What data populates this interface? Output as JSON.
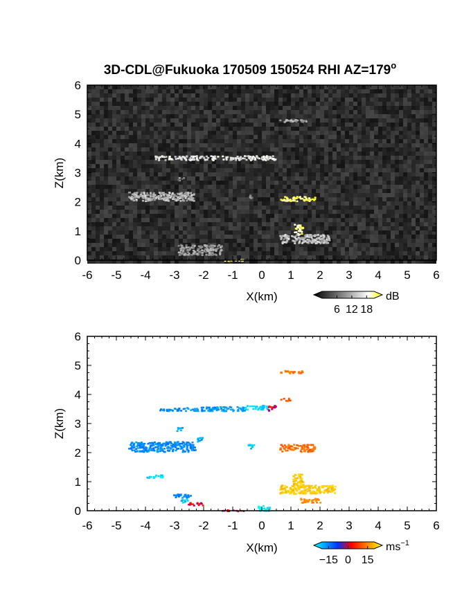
{
  "title": "3D-CDL@Fukuoka 170509 150524 RHI AZ=179",
  "title_superscript": "o",
  "chart_data": [
    {
      "type": "heatmap",
      "field": "reflectivity",
      "xlabel": "X(km)",
      "ylabel": "Z(km)",
      "xlim": [
        -6,
        6
      ],
      "ylim": [
        0,
        6
      ],
      "x_ticks": [
        "-6",
        "-5",
        "-4",
        "-3",
        "-2",
        "-1",
        "0",
        "1",
        "2",
        "3",
        "4",
        "5",
        "6"
      ],
      "y_ticks": [
        "0",
        "1",
        "2",
        "3",
        "4",
        "5",
        "6"
      ],
      "background": "noisy grey speckle",
      "colorbar": {
        "unit": "dB",
        "ticks": [
          "6",
          "12",
          "18"
        ],
        "colors": [
          "#000000",
          "#ffffff",
          "#ffff00"
        ],
        "range": [
          0,
          21
        ]
      },
      "features": [
        {
          "x": [
            0.6,
            1.5
          ],
          "z": [
            4.75,
            4.85
          ],
          "level": 11
        },
        {
          "x": [
            -3.7,
            0.45
          ],
          "z": [
            3.45,
            3.6
          ],
          "level": 15
        },
        {
          "x": [
            -4.6,
            -2.3
          ],
          "z": [
            2.05,
            2.35
          ],
          "level": 12
        },
        {
          "x": [
            -2.9,
            -2.7
          ],
          "z": [
            2.75,
            2.85
          ],
          "level": 9
        },
        {
          "x": [
            0.6,
            1.8
          ],
          "z": [
            2.05,
            2.2
          ],
          "level": 19
        },
        {
          "x": [
            -0.45,
            -0.35
          ],
          "z": [
            2.15,
            2.25
          ],
          "level": 10
        },
        {
          "x": [
            1.1,
            1.4
          ],
          "z": [
            0.9,
            1.25
          ],
          "level": 18
        },
        {
          "x": [
            0.6,
            2.3
          ],
          "z": [
            0.6,
            0.9
          ],
          "level": 13
        },
        {
          "x": [
            -2.9,
            -1.4
          ],
          "z": [
            0.2,
            0.55
          ],
          "level": 10
        },
        {
          "x": [
            -1.4,
            -0.6
          ],
          "z": [
            0.0,
            0.05
          ],
          "level": 20
        }
      ]
    },
    {
      "type": "scatter",
      "field": "doppler_velocity",
      "xlabel": "X(km)",
      "ylabel": "Z(km)",
      "xlim": [
        -6,
        6
      ],
      "ylim": [
        0,
        6
      ],
      "x_ticks": [
        "-6",
        "-5",
        "-4",
        "-3",
        "-2",
        "-1",
        "0",
        "1",
        "2",
        "3",
        "4",
        "5",
        "6"
      ],
      "y_ticks": [
        "0",
        "1",
        "2",
        "3",
        "4",
        "5",
        "6"
      ],
      "colorbar": {
        "unit": "ms",
        "unit_superscript": "−1",
        "ticks": [
          "−15",
          "0",
          "15"
        ],
        "colors": [
          "#00ffff",
          "#0033ff",
          "#ff0000",
          "#ffff00"
        ],
        "range": [
          -20,
          20
        ]
      },
      "features": [
        {
          "x": [
            0.55,
            1.4
          ],
          "z": [
            4.75,
            4.85
          ],
          "v": 10
        },
        {
          "x": [
            0.6,
            0.95
          ],
          "z": [
            3.8,
            3.9
          ],
          "v": 8
        },
        {
          "x": [
            -3.55,
            -2.6
          ],
          "z": [
            3.45,
            3.55
          ],
          "v": -12
        },
        {
          "x": [
            -2.6,
            -0.6
          ],
          "z": [
            3.45,
            3.6
          ],
          "v": -13
        },
        {
          "x": [
            -0.6,
            0.2
          ],
          "z": [
            3.5,
            3.65
          ],
          "v": -17
        },
        {
          "x": [
            0.2,
            0.45
          ],
          "z": [
            3.45,
            3.65
          ],
          "v": 2
        },
        {
          "x": [
            -4.6,
            -2.3
          ],
          "z": [
            2.05,
            2.4
          ],
          "v": -12
        },
        {
          "x": [
            -2.95,
            -2.75
          ],
          "z": [
            2.75,
            2.9
          ],
          "v": -14
        },
        {
          "x": [
            -2.25,
            -2.05
          ],
          "z": [
            2.4,
            2.55
          ],
          "v": -14
        },
        {
          "x": [
            -0.5,
            -0.3
          ],
          "z": [
            2.15,
            2.3
          ],
          "v": -16
        },
        {
          "x": [
            0.6,
            1.8
          ],
          "z": [
            2.05,
            2.3
          ],
          "v": 9
        },
        {
          "x": [
            1.05,
            1.4
          ],
          "z": [
            0.9,
            1.3
          ],
          "v": 16
        },
        {
          "x": [
            0.6,
            2.5
          ],
          "z": [
            0.6,
            0.9
          ],
          "v": 16
        },
        {
          "x": [
            1.3,
            2.0
          ],
          "z": [
            0.3,
            0.45
          ],
          "v": 11
        },
        {
          "x": [
            -4.0,
            -3.4
          ],
          "z": [
            1.15,
            1.25
          ],
          "v": -18
        },
        {
          "x": [
            -3.05,
            -2.45
          ],
          "z": [
            0.45,
            0.6
          ],
          "v": -12
        },
        {
          "x": [
            -2.8,
            -2.55
          ],
          "z": [
            0.3,
            0.45
          ],
          "v": -16
        },
        {
          "x": [
            -2.55,
            -2.05
          ],
          "z": [
            0.2,
            0.3
          ],
          "v": 2
        },
        {
          "x": [
            -1.4,
            -0.65
          ],
          "z": [
            0.0,
            0.05
          ],
          "v": 2
        },
        {
          "x": [
            -0.15,
            0.25
          ],
          "z": [
            0.0,
            0.2
          ],
          "v": -19
        }
      ]
    }
  ]
}
